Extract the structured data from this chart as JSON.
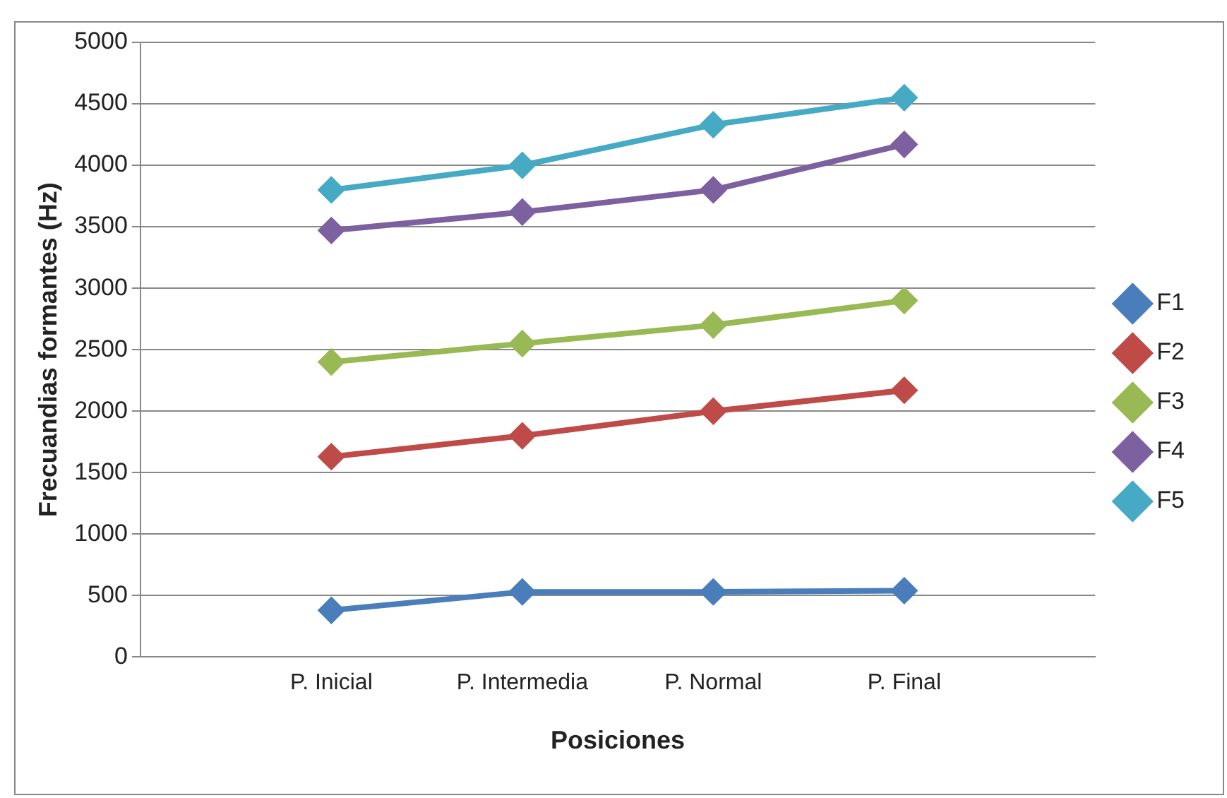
{
  "chart_data": {
    "type": "line",
    "xlabel": "Posiciones",
    "ylabel": "Frecuandias formantes (Hz)",
    "categories": [
      null,
      "P. Inicial",
      "P. Intermedia",
      "P. Normal",
      "P. Final",
      null
    ],
    "series": [
      {
        "name": "F1",
        "color": "#4a7ebb",
        "values": [
          null,
          380,
          530,
          530,
          540,
          null
        ]
      },
      {
        "name": "F2",
        "color": "#be4b48",
        "values": [
          null,
          1630,
          1800,
          2000,
          2170,
          null
        ]
      },
      {
        "name": "F3",
        "color": "#98b954",
        "values": [
          null,
          2400,
          2550,
          2700,
          2900,
          null
        ]
      },
      {
        "name": "F4",
        "color": "#7d60a0",
        "values": [
          null,
          3470,
          3620,
          3800,
          4170,
          null
        ]
      },
      {
        "name": "F5",
        "color": "#46aac5",
        "values": [
          null,
          3800,
          4000,
          4330,
          4550,
          null
        ]
      }
    ],
    "ylim": [
      0,
      5000
    ],
    "yticks": [
      0,
      500,
      1000,
      1500,
      2000,
      2500,
      3000,
      3500,
      4000,
      4500,
      5000
    ],
    "grid": "y",
    "legend": "right",
    "marker": "diamond",
    "line_style": "solid"
  }
}
